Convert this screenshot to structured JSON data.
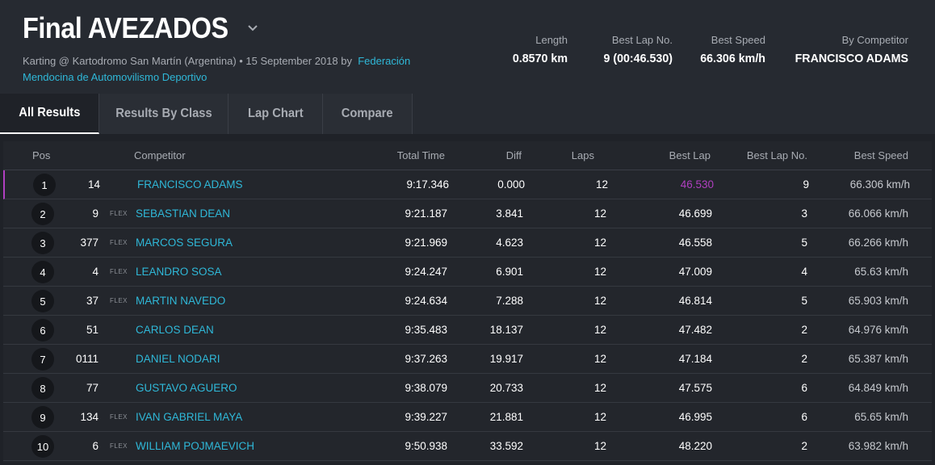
{
  "event": {
    "title": "Final AVEZADOS",
    "subtitle_prefix": "Karting @ Kartodromo San Martín (Argentina) • 15 September 2018 by",
    "organizer": "Federación Mendocina de Automovilismo Deportivo"
  },
  "stats": {
    "length_label": "Length",
    "length": "0.8570 km",
    "best_lap_no_label": "Best Lap No.",
    "best_lap_no": "9 (00:46.530)",
    "best_speed_label": "Best Speed",
    "best_speed": "66.306 km/h",
    "by_competitor_label": "By Competitor",
    "by_competitor": "FRANCISCO ADAMS"
  },
  "tabs": [
    {
      "label": "All Results"
    },
    {
      "label": "Results By Class"
    },
    {
      "label": "Lap Chart"
    },
    {
      "label": "Compare"
    }
  ],
  "columns": {
    "pos": "Pos",
    "competitor": "Competitor",
    "total_time": "Total Time",
    "diff": "Diff",
    "laps": "Laps",
    "best_lap": "Best Lap",
    "best_lap_no": "Best Lap No.",
    "best_speed": "Best Speed"
  },
  "rows": [
    {
      "pos": "1",
      "no": "14",
      "cls": "",
      "name": "FRANCISCO ADAMS",
      "total": "9:17.346",
      "diff": "0.000",
      "laps": "12",
      "best": "46.530",
      "bestno": "9",
      "speed": "66.306 km/h"
    },
    {
      "pos": "2",
      "no": "9",
      "cls": "FLEX",
      "name": "SEBASTIAN DEAN",
      "total": "9:21.187",
      "diff": "3.841",
      "laps": "12",
      "best": "46.699",
      "bestno": "3",
      "speed": "66.066 km/h"
    },
    {
      "pos": "3",
      "no": "377",
      "cls": "FLEX",
      "name": "MARCOS SEGURA",
      "total": "9:21.969",
      "diff": "4.623",
      "laps": "12",
      "best": "46.558",
      "bestno": "5",
      "speed": "66.266 km/h"
    },
    {
      "pos": "4",
      "no": "4",
      "cls": "FLEX",
      "name": "LEANDRO SOSA",
      "total": "9:24.247",
      "diff": "6.901",
      "laps": "12",
      "best": "47.009",
      "bestno": "4",
      "speed": "65.63 km/h"
    },
    {
      "pos": "5",
      "no": "37",
      "cls": "FLEX",
      "name": "MARTIN NAVEDO",
      "total": "9:24.634",
      "diff": "7.288",
      "laps": "12",
      "best": "46.814",
      "bestno": "5",
      "speed": "65.903 km/h"
    },
    {
      "pos": "6",
      "no": "51",
      "cls": "",
      "name": "CARLOS DEAN",
      "total": "9:35.483",
      "diff": "18.137",
      "laps": "12",
      "best": "47.482",
      "bestno": "2",
      "speed": "64.976 km/h"
    },
    {
      "pos": "7",
      "no": "0111",
      "cls": "",
      "name": "DANIEL NODARI",
      "total": "9:37.263",
      "diff": "19.917",
      "laps": "12",
      "best": "47.184",
      "bestno": "2",
      "speed": "65.387 km/h"
    },
    {
      "pos": "8",
      "no": "77",
      "cls": "",
      "name": "GUSTAVO AGUERO",
      "total": "9:38.079",
      "diff": "20.733",
      "laps": "12",
      "best": "47.575",
      "bestno": "6",
      "speed": "64.849 km/h"
    },
    {
      "pos": "9",
      "no": "134",
      "cls": "FLEX",
      "name": "IVAN GABRIEL MAYA",
      "total": "9:39.227",
      "diff": "21.881",
      "laps": "12",
      "best": "46.995",
      "bestno": "6",
      "speed": "65.65 km/h"
    },
    {
      "pos": "10",
      "no": "6",
      "cls": "FLEX",
      "name": "WILLIAM POJMAEVICH",
      "total": "9:50.938",
      "diff": "33.592",
      "laps": "12",
      "best": "48.220",
      "bestno": "2",
      "speed": "63.982 km/h"
    }
  ],
  "colors": {
    "accent": "#2fb8d8",
    "fastest": "#b03fc1",
    "background": "#1f2228"
  }
}
